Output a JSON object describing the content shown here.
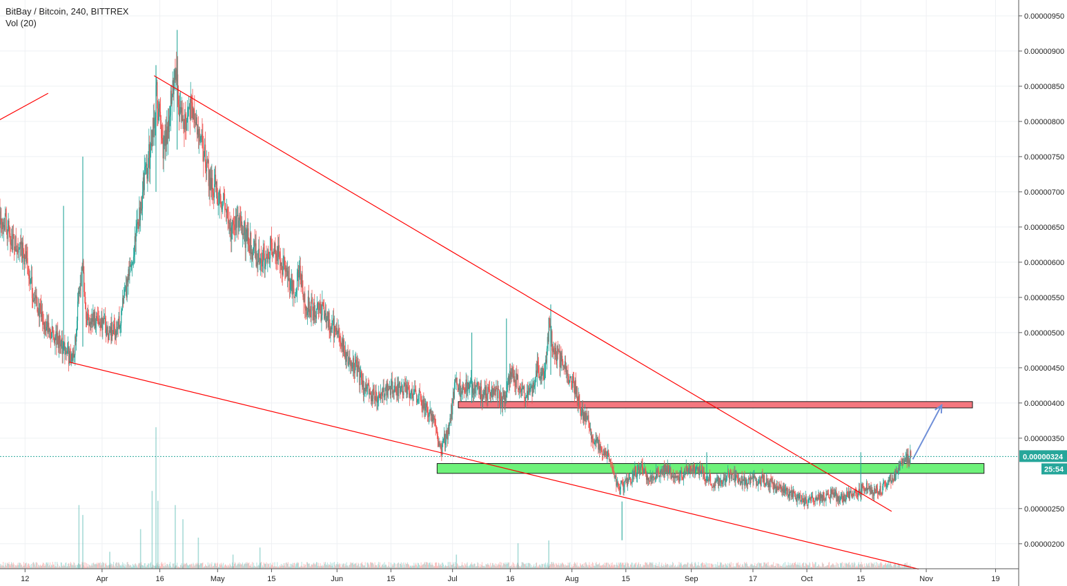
{
  "legend": {
    "title": "BitBay / Bitcoin, 240, BITTREX",
    "indicator": "Vol (20)"
  },
  "price_badge": {
    "price": "0.00000324",
    "countdown": "25:54",
    "color": "#26a69a"
  },
  "colors": {
    "up": "#26a69a",
    "down": "#ef5350",
    "trend": "#ff0000",
    "resistance_fill": "#f4777f",
    "support_fill": "#6ef27a",
    "arrow": "#6f8fd8"
  },
  "chart_data": {
    "type": "candlestick",
    "title": "BitBay / Bitcoin, 240, BITTREX",
    "xlabel": "",
    "ylabel": "",
    "ylim": [
      1.645e-06,
      9.725e-06
    ],
    "y_ticks": [
      "0.00000950",
      "0.00000900",
      "0.00000850",
      "0.00000800",
      "0.00000750",
      "0.00000700",
      "0.00000650",
      "0.00000600",
      "0.00000550",
      "0.00000500",
      "0.00000450",
      "0.00000400",
      "0.00000350",
      "0.00000250",
      "0.00000200"
    ],
    "x_ticks": [
      {
        "label": "12",
        "day": 12
      },
      {
        "label": "Apr",
        "day": 32
      },
      {
        "label": "16",
        "day": 47
      },
      {
        "label": "May",
        "day": 62
      },
      {
        "label": "15",
        "day": 76
      },
      {
        "label": "Jun",
        "day": 93
      },
      {
        "label": "15",
        "day": 107
      },
      {
        "label": "Jul",
        "day": 123
      },
      {
        "label": "16",
        "day": 138
      },
      {
        "label": "Aug",
        "day": 154
      },
      {
        "label": "15",
        "day": 168
      },
      {
        "label": "Sep",
        "day": 185
      },
      {
        "label": "17",
        "day": 201
      },
      {
        "label": "Oct",
        "day": 215
      },
      {
        "label": "15",
        "day": 229
      },
      {
        "label": "Nov",
        "day": 246
      },
      {
        "label": "19",
        "day": 264
      }
    ],
    "x_range_days": [
      5.5,
      270
    ],
    "price_path": [
      [
        5.5,
        6.72e-06
      ],
      [
        8,
        6.4e-06
      ],
      [
        10,
        6.15e-06
      ],
      [
        12,
        6.1e-06
      ],
      [
        14,
        5.55e-06
      ],
      [
        17,
        5.1e-06
      ],
      [
        20,
        4.9e-06
      ],
      [
        22,
        4.8e-06
      ],
      [
        24,
        4.6e-06
      ],
      [
        25,
        4.85e-06
      ],
      [
        26,
        5.6e-06
      ],
      [
        27,
        6e-06
      ],
      [
        28,
        5.2e-06
      ],
      [
        31,
        5.2e-06
      ],
      [
        34,
        5e-06
      ],
      [
        36,
        5.05e-06
      ],
      [
        38,
        5.5e-06
      ],
      [
        40,
        6.1e-06
      ],
      [
        42,
        6.8e-06
      ],
      [
        43,
        7.2e-06
      ],
      [
        45,
        7.7e-06
      ],
      [
        46,
        8.4e-06
      ],
      [
        47,
        8e-06
      ],
      [
        48,
        7.6e-06
      ],
      [
        50,
        8.3e-06
      ],
      [
        51,
        8.8e-06
      ],
      [
        52,
        8.2e-06
      ],
      [
        53,
        8e-06
      ],
      [
        55,
        8.2e-06
      ],
      [
        56,
        8e-06
      ],
      [
        58,
        7.6e-06
      ],
      [
        60,
        7.2e-06
      ],
      [
        62,
        7e-06
      ],
      [
        64,
        6.8e-06
      ],
      [
        65,
        6.4e-06
      ],
      [
        67,
        6.6e-06
      ],
      [
        69,
        6.4e-06
      ],
      [
        71,
        6.2e-06
      ],
      [
        73,
        6e-06
      ],
      [
        76,
        6.2e-06
      ],
      [
        78,
        6.1e-06
      ],
      [
        80,
        5.8e-06
      ],
      [
        82,
        5.6e-06
      ],
      [
        83,
        5.9e-06
      ],
      [
        85,
        5.4e-06
      ],
      [
        87,
        5.3e-06
      ],
      [
        89,
        5.3e-06
      ],
      [
        91,
        5.15e-06
      ],
      [
        93,
        5e-06
      ],
      [
        96,
        4.6e-06
      ],
      [
        98,
        4.5e-06
      ],
      [
        100,
        4.2e-06
      ],
      [
        103,
        4.1e-06
      ],
      [
        106,
        4.2e-06
      ],
      [
        109,
        4.2e-06
      ],
      [
        112,
        4.15e-06
      ],
      [
        114,
        4.1e-06
      ],
      [
        116,
        3.95e-06
      ],
      [
        118,
        3.8e-06
      ],
      [
        120,
        3.3e-06
      ],
      [
        121,
        3.5e-06
      ],
      [
        122,
        3.6e-06
      ],
      [
        124,
        4.4e-06
      ],
      [
        125,
        4.2e-06
      ],
      [
        127,
        4.3e-06
      ],
      [
        129,
        4.2e-06
      ],
      [
        131,
        4.1e-06
      ],
      [
        134,
        4.2e-06
      ],
      [
        136,
        4e-06
      ],
      [
        138,
        4.4e-06
      ],
      [
        140,
        4.3e-06
      ],
      [
        142,
        4.1e-06
      ],
      [
        144,
        4.2e-06
      ],
      [
        145,
        4.5e-06
      ],
      [
        147,
        4.4e-06
      ],
      [
        148,
        5.1e-06
      ],
      [
        149,
        4.8e-06
      ],
      [
        151,
        4.6e-06
      ],
      [
        153,
        4.4e-06
      ],
      [
        155,
        4.2e-06
      ],
      [
        156,
        3.9e-06
      ],
      [
        158,
        3.8e-06
      ],
      [
        159,
        3.5e-06
      ],
      [
        161,
        3.4e-06
      ],
      [
        163,
        3.3e-06
      ],
      [
        165,
        3e-06
      ],
      [
        166,
        2.8e-06
      ],
      [
        168,
        2.85e-06
      ],
      [
        170,
        3e-06
      ],
      [
        172,
        3.1e-06
      ],
      [
        174,
        2.9e-06
      ],
      [
        176,
        3e-06
      ],
      [
        178,
        3.05e-06
      ],
      [
        180,
        3e-06
      ],
      [
        182,
        2.95e-06
      ],
      [
        185,
        3.1e-06
      ],
      [
        187,
        3.05e-06
      ],
      [
        189,
        2.95e-06
      ],
      [
        191,
        2.85e-06
      ],
      [
        193,
        2.9e-06
      ],
      [
        195,
        3e-06
      ],
      [
        198,
        2.9e-06
      ],
      [
        201,
        2.9e-06
      ],
      [
        204,
        2.9e-06
      ],
      [
        207,
        2.8e-06
      ],
      [
        209,
        2.75e-06
      ],
      [
        211,
        2.7e-06
      ],
      [
        213,
        2.65e-06
      ],
      [
        215,
        2.6e-06
      ],
      [
        218,
        2.65e-06
      ],
      [
        221,
        2.7e-06
      ],
      [
        224,
        2.65e-06
      ],
      [
        227,
        2.7e-06
      ],
      [
        230,
        2.8e-06
      ],
      [
        232,
        2.75e-06
      ],
      [
        234,
        2.75e-06
      ],
      [
        236,
        2.9e-06
      ],
      [
        238,
        2.95e-06
      ],
      [
        240,
        3.2e-06
      ],
      [
        242,
        3.24e-06
      ]
    ],
    "spikes": [
      {
        "day": 27,
        "high": 7.5e-06,
        "low": 4.8e-06
      },
      {
        "day": 46,
        "high": 8.8e-06,
        "low": 7e-06
      },
      {
        "day": 51.5,
        "high": 9.3e-06,
        "low": 7.6e-06
      },
      {
        "day": 22,
        "high": 6.8e-06,
        "low": 4.7e-06
      },
      {
        "day": 148.5,
        "high": 5.4e-06,
        "low": 4.4e-06
      },
      {
        "day": 167,
        "high": 2.6e-06,
        "low": 2.05e-06
      },
      {
        "day": 189,
        "high": 3.3e-06,
        "low": 2.9e-06
      },
      {
        "day": 128,
        "high": 5e-06,
        "low": 4e-06
      },
      {
        "day": 137,
        "high": 5.2e-06,
        "low": 4.2e-06
      },
      {
        "day": 229,
        "high": 3.3e-06,
        "low": 2.6e-06
      }
    ],
    "trendlines": [
      {
        "from": [
          45.5,
          8.65e-06
        ],
        "to": [
          237,
          2.46e-06
        ]
      },
      {
        "from": [
          23.5,
          4.58e-06
        ],
        "to": [
          244,
          1.64e-06
        ]
      },
      {
        "from": [
          3,
          7.95e-06
        ],
        "to": [
          18,
          8.4e-06
        ]
      }
    ],
    "zones": [
      {
        "kind": "resistance",
        "day_from": 124.5,
        "day_to": 258,
        "price_from": 3.93e-06,
        "price_to": 4.02e-06
      },
      {
        "kind": "support",
        "day_from": 119,
        "day_to": 261,
        "price_from": 3e-06,
        "price_to": 3.14e-06
      }
    ],
    "projection_arrow": {
      "from": [
        242.5,
        3.2e-06
      ],
      "to": [
        250,
        3.97e-06
      ]
    },
    "last_price": 3.24e-06,
    "volume_spikes": [
      {
        "day": 26,
        "vol": 0.45
      },
      {
        "day": 27,
        "vol": 0.38
      },
      {
        "day": 45,
        "vol": 0.55
      },
      {
        "day": 46,
        "vol": 1.0
      },
      {
        "day": 46.5,
        "vol": 0.48
      },
      {
        "day": 51,
        "vol": 0.45
      },
      {
        "day": 53,
        "vol": 0.35
      },
      {
        "day": 42,
        "vol": 0.28
      },
      {
        "day": 57,
        "vol": 0.22
      },
      {
        "day": 73,
        "vol": 0.15
      },
      {
        "day": 148,
        "vol": 0.2
      },
      {
        "day": 124,
        "vol": 0.1
      },
      {
        "day": 140,
        "vol": 0.18
      },
      {
        "day": 34,
        "vol": 0.12
      },
      {
        "day": 66,
        "vol": 0.1
      }
    ]
  }
}
